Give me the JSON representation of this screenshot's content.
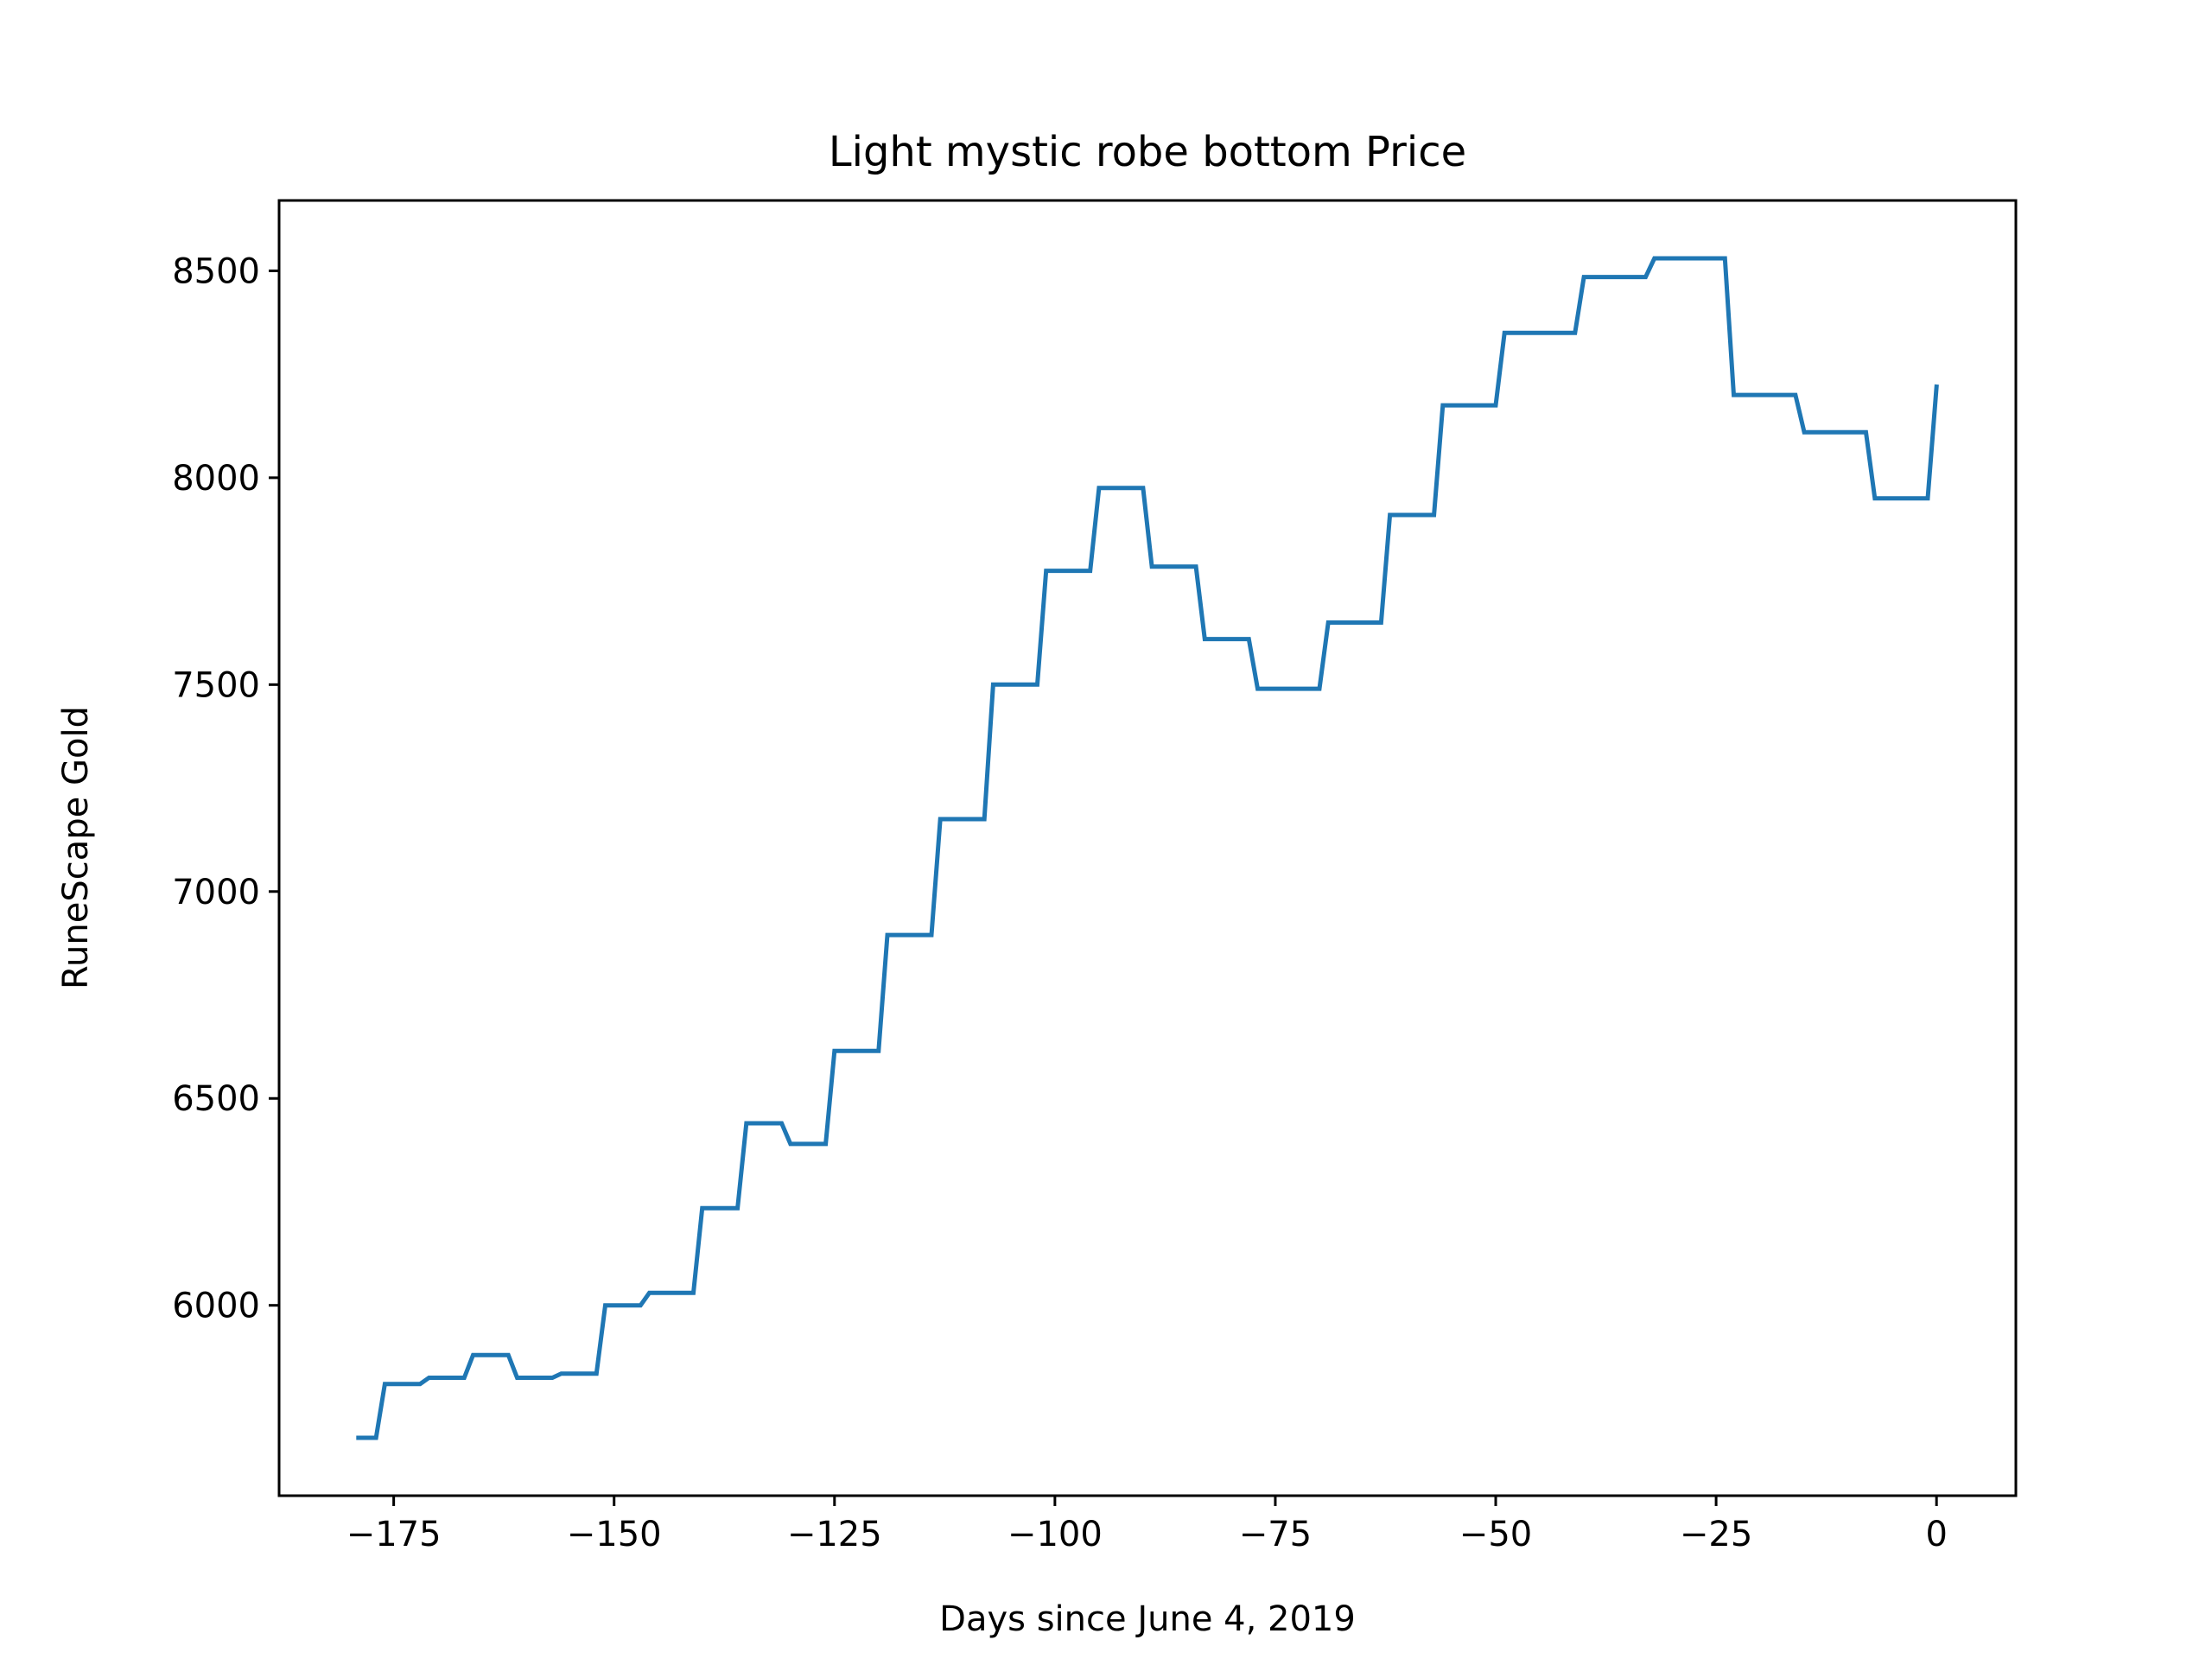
{
  "chart_data": {
    "type": "line",
    "title": "Light mystic robe bottom Price",
    "xlabel": "Days since June 4, 2019",
    "ylabel": "RuneScape Gold",
    "xlim": [
      -188,
      9
    ],
    "ylim": [
      5540,
      8670
    ],
    "xticks": [
      -175,
      -150,
      -125,
      -100,
      -75,
      -50,
      -25,
      0
    ],
    "xtick_labels": [
      "−175",
      "−150",
      "−125",
      "−100",
      "−75",
      "−50",
      "−25",
      "0"
    ],
    "yticks": [
      6000,
      6500,
      7000,
      7500,
      8000,
      8500
    ],
    "ytick_labels": [
      "6000",
      "6500",
      "7000",
      "7500",
      "8000",
      "8500"
    ],
    "grid": false,
    "line_color": "#1f77b4",
    "series": [
      {
        "x": [
          -179,
          -177,
          -176,
          -172,
          -171,
          -167,
          -166,
          -162,
          -161,
          -157,
          -156,
          -152,
          -151,
          -147,
          -146,
          -141,
          -140,
          -136,
          -135,
          -131,
          -130,
          -126,
          -125,
          -120,
          -119,
          -114,
          -113,
          -108,
          -107,
          -102,
          -101,
          -96,
          -95,
          -90,
          -89,
          -84,
          -83,
          -78,
          -77,
          -70,
          -69,
          -63,
          -62,
          -57,
          -56,
          -50,
          -49,
          -41,
          -40,
          -33,
          -32,
          -24,
          -23,
          -16,
          -15,
          -8,
          -7,
          -1,
          0
        ],
        "y": [
          5680,
          5680,
          5810,
          5810,
          5825,
          5825,
          5880,
          5880,
          5825,
          5825,
          5835,
          5835,
          6000,
          6000,
          6030,
          6030,
          6235,
          6235,
          6440,
          6440,
          6390,
          6390,
          6615,
          6615,
          6895,
          6895,
          7175,
          7175,
          7500,
          7500,
          7775,
          7775,
          7975,
          7975,
          7785,
          7785,
          7610,
          7610,
          7490,
          7490,
          7650,
          7650,
          7910,
          7910,
          8175,
          8175,
          8350,
          8350,
          8485,
          8485,
          8530,
          8530,
          8200,
          8200,
          8110,
          8110,
          7950,
          7950,
          8220
        ]
      }
    ]
  }
}
